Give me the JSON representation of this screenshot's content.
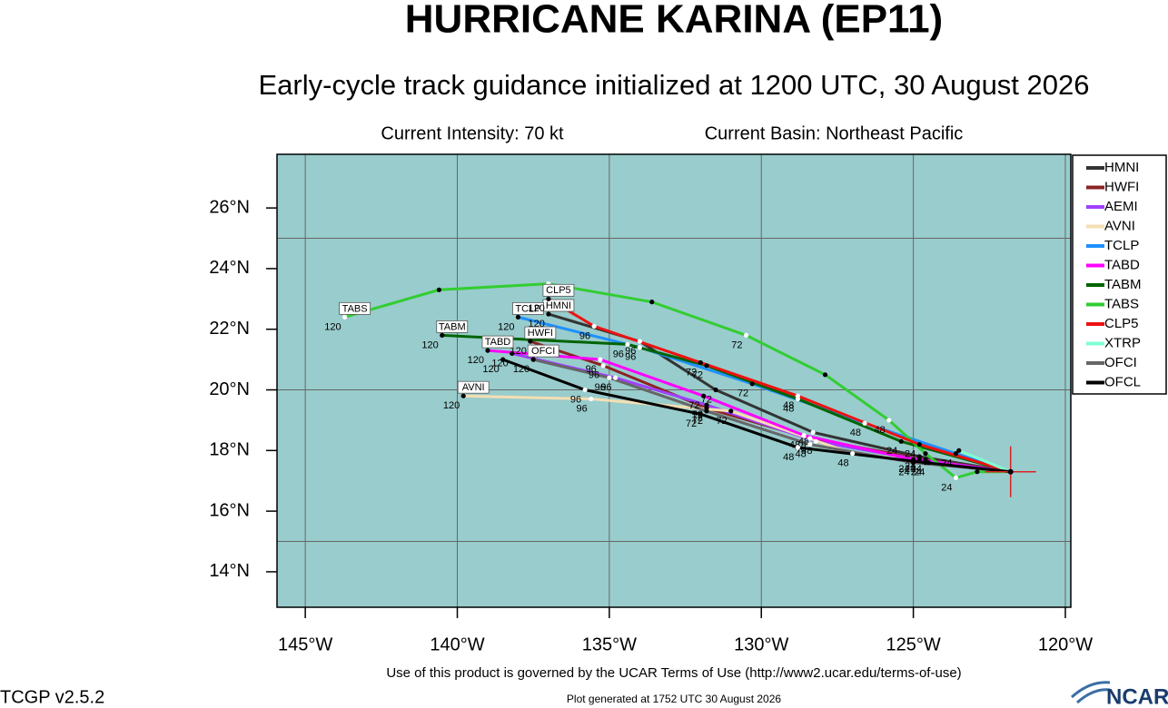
{
  "chart_data": {
    "type": "track",
    "title": "HURRICANE KARINA (EP11)",
    "subtitle": "Early-cycle track guidance initialized at 1200 UTC, 30 August 2026",
    "intensity": "Current Intensity: 70 kt",
    "basin": "Current Basin: Northeast Pacific",
    "terms": "Use of this product is governed by the UCAR Terms of Use (http://www2.ucar.edu/terms-of-use)",
    "version": "TCGP v2.5.2",
    "generated": "Plot generated at 1752 UTC   30 August 2026",
    "logo": "NCAR",
    "background": "#99cccc",
    "xlim": [
      -145.93,
      -119.82
    ],
    "ylim": [
      12.83,
      27.77
    ],
    "xticks": [
      {
        "value": -145,
        "label": "145°W"
      },
      {
        "value": -140,
        "label": "140°W"
      },
      {
        "value": -135,
        "label": "135°W"
      },
      {
        "value": -130,
        "label": "130°W"
      },
      {
        "value": -125,
        "label": "125°W"
      },
      {
        "value": -120,
        "label": "120°W"
      }
    ],
    "yticks": [
      {
        "value": 14,
        "label": "14°N"
      },
      {
        "value": 16,
        "label": "16°N"
      },
      {
        "value": 18,
        "label": "18°N"
      },
      {
        "value": 20,
        "label": "20°N"
      },
      {
        "value": 22,
        "label": "22°N"
      },
      {
        "value": 24,
        "label": "24°N"
      },
      {
        "value": 26,
        "label": "26°N"
      }
    ],
    "grid_lon": [
      -145,
      -140,
      -135,
      -130,
      -125,
      -120
    ],
    "grid_lat": [
      15,
      20,
      25
    ],
    "storm_position": {
      "lon": -121.8,
      "lat": 17.3,
      "color": "#dd2222"
    },
    "series": [
      {
        "name": "HMNI",
        "color": "#333333",
        "lon": [
          -121.8,
          -124.8,
          -128.3,
          -131.5,
          -134.0,
          -137.0
        ],
        "lat": [
          17.3,
          17.8,
          18.6,
          20.0,
          21.6,
          22.5
        ],
        "point_labels": [
          null,
          24,
          48,
          72,
          96,
          120
        ],
        "end_box": true
      },
      {
        "name": "HWFI",
        "color": "#8b2323",
        "lon": [
          -121.8,
          -124.6,
          -128.4,
          -131.8,
          -135.2,
          -137.6
        ],
        "lat": [
          17.3,
          17.7,
          18.4,
          19.4,
          20.8,
          21.6
        ],
        "point_labels": [
          null,
          24,
          48,
          72,
          96,
          120
        ],
        "end_box": true
      },
      {
        "name": "AEMI",
        "color": "#a040ff",
        "lon": [
          -121.8,
          -124.8,
          -128.2,
          -131.8,
          -134.8,
          -138.2
        ],
        "lat": [
          17.3,
          17.7,
          18.3,
          19.5,
          20.4,
          21.2
        ],
        "point_labels": [
          null,
          24,
          48,
          72,
          96,
          120
        ],
        "end_box": false
      },
      {
        "name": "AVNI",
        "color": "#f5deb3",
        "lon": [
          -121.8,
          -124.5,
          -127.0,
          -131.0,
          -135.6,
          -139.8
        ],
        "lat": [
          17.3,
          17.6,
          17.9,
          19.3,
          19.7,
          19.8
        ],
        "point_labels": [
          null,
          24,
          48,
          72,
          96,
          120
        ],
        "end_box": true
      },
      {
        "name": "TCLP",
        "color": "#1e90ff",
        "lon": [
          -121.8,
          -123.6,
          -126.6,
          -130.3,
          -134.0,
          -138.0
        ],
        "lat": [
          17.3,
          17.9,
          18.9,
          20.2,
          21.4,
          22.4
        ],
        "point_labels": [
          null,
          24,
          48,
          72,
          96,
          120
        ],
        "end_box": true
      },
      {
        "name": "TABD",
        "color": "#ff00ff",
        "lon": [
          -121.8,
          -125.0,
          -128.6,
          -131.9,
          -135.3,
          -139.0
        ],
        "lat": [
          17.3,
          17.7,
          18.5,
          19.8,
          21.0,
          21.3
        ],
        "point_labels": [
          null,
          24,
          48,
          72,
          96,
          120
        ],
        "end_box": true
      },
      {
        "name": "TABM",
        "color": "#006400",
        "lon": [
          -121.8,
          -125.4,
          -128.8,
          -131.8,
          -134.4,
          -140.5
        ],
        "lat": [
          17.3,
          18.3,
          19.7,
          20.8,
          21.5,
          21.8
        ],
        "point_labels": [
          null,
          24,
          48,
          72,
          96,
          120
        ],
        "end_box": true
      },
      {
        "name": "TABS",
        "color": "#32cd32",
        "lon": [
          -121.8,
          -122.9,
          -123.6,
          -124.6,
          -125.8,
          -127.9,
          -130.5,
          -133.6,
          -137.0,
          -140.6,
          -143.7
        ],
        "lat": [
          17.3,
          17.3,
          17.1,
          17.9,
          19.0,
          20.5,
          21.8,
          22.9,
          23.5,
          23.3,
          22.4
        ],
        "point_labels": [
          null,
          null,
          24,
          null,
          48,
          null,
          72,
          null,
          null,
          null,
          120
        ],
        "end_box": true
      },
      {
        "name": "CLP5",
        "color": "#ee1111",
        "lon": [
          -121.8,
          -124.8,
          -128.8,
          -132.0,
          -135.5,
          -137.0
        ],
        "lat": [
          17.3,
          18.2,
          19.8,
          20.9,
          22.1,
          23.0
        ],
        "point_labels": [
          null,
          24,
          48,
          72,
          96,
          120
        ],
        "end_box": true
      },
      {
        "name": "XTRP",
        "color": "#7fffd4",
        "lon": [
          -121.8,
          -123.5
        ],
        "lat": [
          17.3,
          18.0
        ],
        "point_labels": [
          null,
          null
        ],
        "end_box": false
      },
      {
        "name": "OFCI",
        "color": "#666666",
        "lon": [
          -121.8,
          -125.0,
          -128.4,
          -131.8,
          -135.0,
          -137.5
        ],
        "lat": [
          17.3,
          17.6,
          18.2,
          19.3,
          20.4,
          21.0
        ],
        "point_labels": [
          null,
          24,
          48,
          72,
          96,
          120
        ],
        "end_box": true
      },
      {
        "name": "OFCL",
        "color": "#000000",
        "lon": [
          -121.8,
          -124.6,
          -128.8,
          -132.0,
          -135.8,
          -138.5
        ],
        "lat": [
          17.3,
          17.6,
          18.1,
          19.2,
          20.0,
          21.0
        ],
        "point_labels": [
          null,
          24,
          48,
          72,
          96,
          120
        ],
        "end_box": false
      }
    ]
  }
}
